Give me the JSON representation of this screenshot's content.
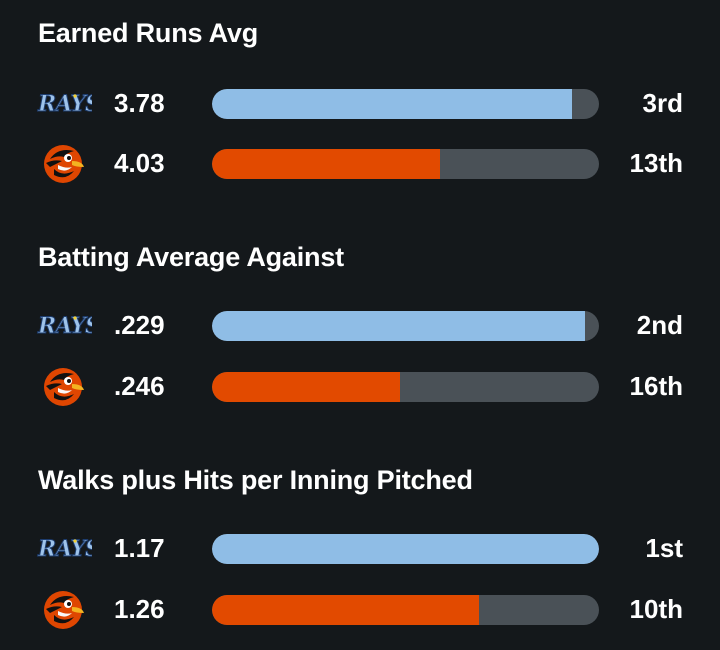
{
  "colors": {
    "rays": "#8fbde6",
    "orioles": "#e24a00",
    "track": "#4a5157"
  },
  "sections": [
    {
      "title": "Earned Runs Avg",
      "rows": [
        {
          "team": "rays",
          "logo": "rays-logo",
          "value": "3.78",
          "rank": "3rd",
          "fill": 0.93
        },
        {
          "team": "orioles",
          "logo": "orioles-logo",
          "value": "4.03",
          "rank": "13th",
          "fill": 0.59
        }
      ]
    },
    {
      "title": "Batting Average Against",
      "rows": [
        {
          "team": "rays",
          "logo": "rays-logo",
          "value": ".229",
          "rank": "2nd",
          "fill": 0.965
        },
        {
          "team": "orioles",
          "logo": "orioles-logo",
          "value": ".246",
          "rank": "16th",
          "fill": 0.485
        }
      ]
    },
    {
      "title": "Walks plus Hits per Inning Pitched",
      "rows": [
        {
          "team": "rays",
          "logo": "rays-logo",
          "value": "1.17",
          "rank": "1st",
          "fill": 1.0
        },
        {
          "team": "orioles",
          "logo": "orioles-logo",
          "value": "1.26",
          "rank": "10th",
          "fill": 0.69
        }
      ]
    }
  ]
}
